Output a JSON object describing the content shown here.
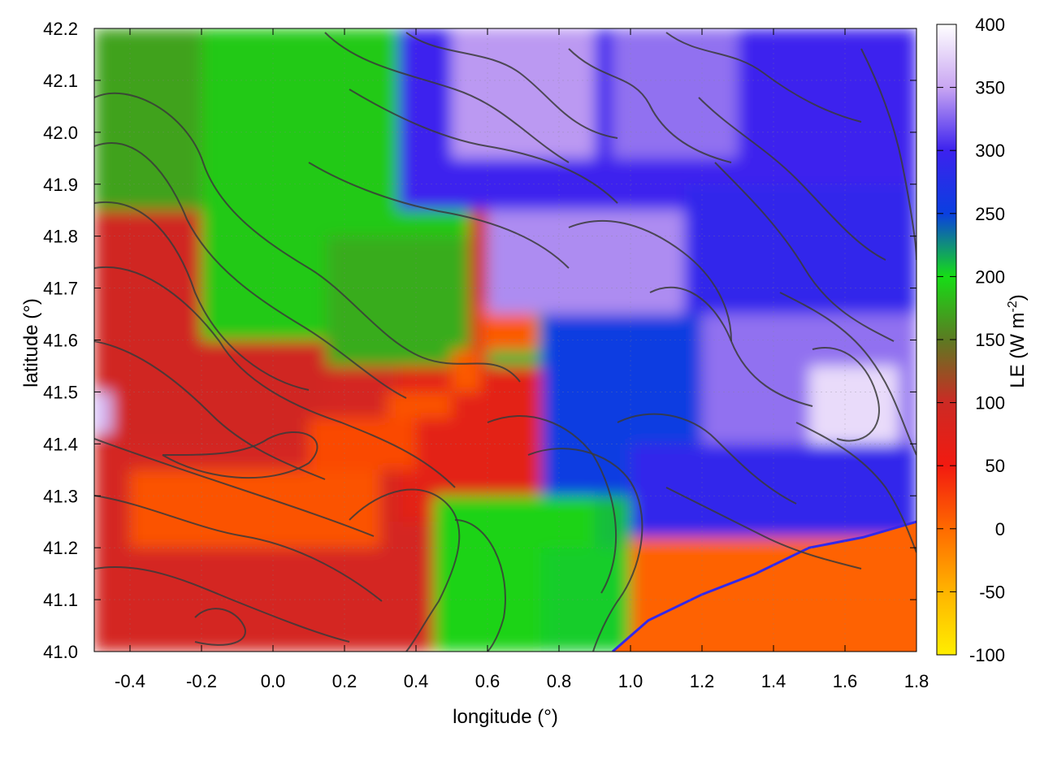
{
  "chart_data": {
    "type": "heatmap",
    "title": "",
    "xlabel": "longitude (°)",
    "ylabel": "latitude (°)",
    "xlim": [
      -0.5,
      1.8
    ],
    "ylim": [
      41.0,
      42.2
    ],
    "x_ticks": [
      -0.4,
      -0.2,
      0.0,
      0.2,
      0.4,
      0.6,
      0.8,
      1.0,
      1.2,
      1.4,
      1.6,
      1.8
    ],
    "x_tick_labels": [
      "-0.4",
      "-0.2",
      "0.0",
      "0.2",
      "0.4",
      "0.6",
      "0.8",
      "1.0",
      "1.2",
      "1.4",
      "1.6",
      "1.8"
    ],
    "y_ticks": [
      41.0,
      41.1,
      41.2,
      41.3,
      41.4,
      41.5,
      41.6,
      41.7,
      41.8,
      41.9,
      42.0,
      42.1,
      42.2
    ],
    "y_tick_labels": [
      "41.0",
      "41.1",
      "41.2",
      "41.3",
      "41.4",
      "41.5",
      "41.6",
      "41.7",
      "41.8",
      "41.9",
      "42.0",
      "42.1",
      "42.2"
    ],
    "grid": true,
    "colorbar": {
      "label_main": "LE (W m",
      "label_sup": "-2",
      "label_end": ")",
      "range": [
        -100,
        400
      ],
      "ticks": [
        -100,
        -50,
        0,
        50,
        100,
        150,
        200,
        250,
        300,
        350,
        400
      ],
      "tick_labels": [
        "-100",
        "-50",
        "0",
        "50",
        "100",
        "150",
        "200",
        "250",
        "300",
        "350",
        "400"
      ],
      "stops": [
        {
          "v": -100,
          "c": "#ffee00"
        },
        {
          "v": -50,
          "c": "#ffb400"
        },
        {
          "v": 0,
          "c": "#ff6a00"
        },
        {
          "v": 50,
          "c": "#f21a10"
        },
        {
          "v": 100,
          "c": "#cc2a24"
        },
        {
          "v": 150,
          "c": "#5c7a22"
        },
        {
          "v": 200,
          "c": "#16dd16"
        },
        {
          "v": 250,
          "c": "#0a3fe0"
        },
        {
          "v": 300,
          "c": "#3c22ee"
        },
        {
          "v": 350,
          "c": "#c9a6f2"
        },
        {
          "v": 400,
          "c": "#ffffff"
        }
      ]
    },
    "field_regions": [
      {
        "lon": [
          -0.5,
          1.8
        ],
        "lat": [
          41.0,
          42.2
        ],
        "value": 210
      },
      {
        "lon": [
          -0.5,
          0.6
        ],
        "lat": [
          41.0,
          41.85
        ],
        "value": 90
      },
      {
        "lon": [
          -0.5,
          0.15
        ],
        "lat": [
          41.4,
          41.9
        ],
        "value": 95
      },
      {
        "lon": [
          -0.2,
          0.55
        ],
        "lat": [
          41.6,
          42.2
        ],
        "value": 190
      },
      {
        "lon": [
          -0.5,
          -0.2
        ],
        "lat": [
          41.85,
          42.2
        ],
        "value": 170
      },
      {
        "lon": [
          0.15,
          0.55
        ],
        "lat": [
          41.55,
          41.8
        ],
        "value": 175
      },
      {
        "lon": [
          0.35,
          0.75
        ],
        "lat": [
          41.25,
          41.55
        ],
        "value": 70
      },
      {
        "lon": [
          0.45,
          0.9
        ],
        "lat": [
          41.0,
          41.3
        ],
        "value": 195
      },
      {
        "lon": [
          -0.4,
          0.3
        ],
        "lat": [
          41.2,
          41.35
        ],
        "value": 15
      },
      {
        "lon": [
          0.1,
          0.4
        ],
        "lat": [
          41.35,
          41.45
        ],
        "value": 20
      },
      {
        "lon": [
          0.32,
          0.5
        ],
        "lat": [
          41.45,
          41.5
        ],
        "value": 15
      },
      {
        "lon": [
          0.5,
          0.58
        ],
        "lat": [
          41.5,
          41.58
        ],
        "value": 10
      },
      {
        "lon": [
          0.58,
          0.74
        ],
        "lat": [
          41.58,
          41.67
        ],
        "value": 10
      },
      {
        "lon": [
          0.35,
          1.8
        ],
        "lat": [
          41.85,
          42.2
        ],
        "value": 300
      },
      {
        "lon": [
          0.5,
          0.9
        ],
        "lat": [
          41.95,
          42.2
        ],
        "value": 345
      },
      {
        "lon": [
          0.95,
          1.3
        ],
        "lat": [
          41.95,
          42.2
        ],
        "value": 330
      },
      {
        "lon": [
          0.6,
          1.15
        ],
        "lat": [
          41.65,
          41.85
        ],
        "value": 340
      },
      {
        "lon": [
          1.15,
          1.8
        ],
        "lat": [
          41.45,
          41.9
        ],
        "value": 290
      },
      {
        "lon": [
          1.1,
          1.8
        ],
        "lat": [
          41.35,
          41.65
        ],
        "value": 330
      },
      {
        "lon": [
          1.5,
          1.75
        ],
        "lat": [
          41.35,
          41.55
        ],
        "value": 380
      },
      {
        "lon": [
          0.75,
          1.2
        ],
        "lat": [
          41.3,
          41.65
        ],
        "value": 255
      },
      {
        "lon": [
          1.0,
          1.8
        ],
        "lat": [
          41.2,
          41.4
        ],
        "value": 290
      },
      {
        "lon": [
          0.75,
          1.0
        ],
        "lat": [
          41.0,
          41.2
        ],
        "value": 205
      },
      {
        "lon": [
          1.0,
          1.8
        ],
        "lat": [
          41.0,
          41.22
        ],
        "value": 5
      },
      {
        "lon": [
          -0.5,
          -0.45
        ],
        "lat": [
          41.42,
          41.5
        ],
        "value": 360
      }
    ],
    "coastline": [
      [
        0.95,
        41.0
      ],
      [
        1.05,
        41.06
      ],
      [
        1.2,
        41.11
      ],
      [
        1.35,
        41.15
      ],
      [
        1.5,
        41.2
      ],
      [
        1.65,
        41.22
      ],
      [
        1.8,
        41.25
      ]
    ]
  }
}
